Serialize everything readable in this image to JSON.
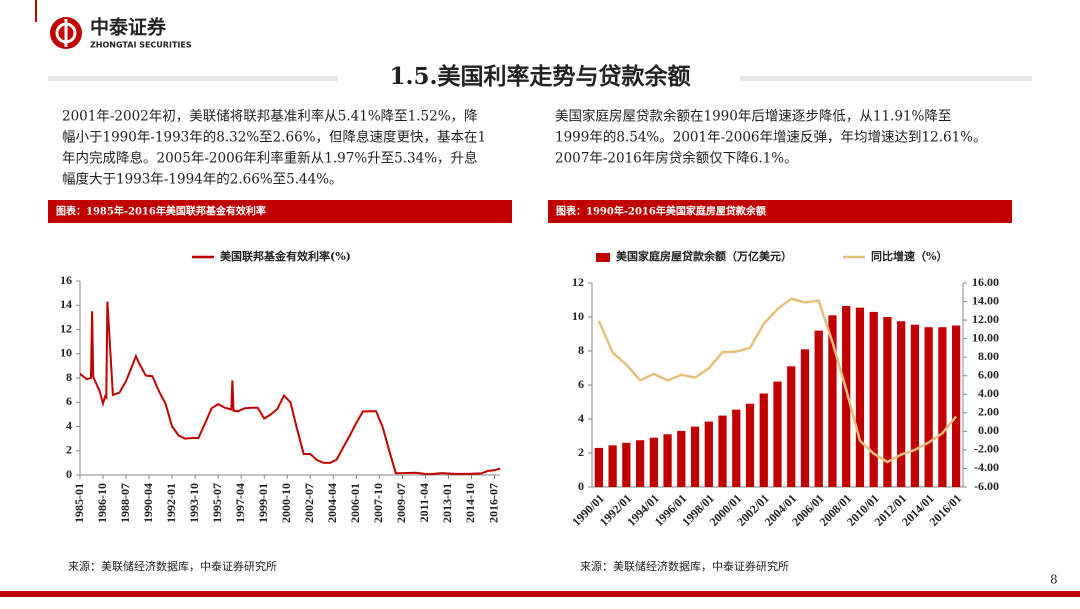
{
  "header": {
    "brand": "中泰证券",
    "brand_en": "ZHONGTAI SECURITIES"
  },
  "title": "1.5.美国利率走势与贷款余额",
  "left_text": [
    "2001年-2002年初，美联储将联邦基准利率从5.41%降至1.52%，降",
    "幅小于1990年-1993年的8.32%至2.66%，但降息速度更快，基本在1",
    "年内完成降息。2005年-2006年利率重新从1.97%升至5.34%，升息",
    "幅度大于1993年-1994年的2.66%至5.44%。"
  ],
  "right_text": [
    "美国家庭房屋贷款余额在1990年后增速逐步降低，从11.91%降至",
    "1999年的8.54%。2001年-2006年增速反弹，年均增速达到12.61%。",
    "2007年-2016年房贷余额仅下降6.1%。"
  ],
  "page_number": "8",
  "chart_data": [
    {
      "type": "line",
      "caption": "图表：1985年-2016年美国联邦基金有效利率",
      "source": "来源：美联储经济数据库，中泰证券研究所",
      "x": [
        "1985-01",
        "1985-07",
        "1985-11",
        "1985-12",
        "1986-01",
        "1986-07",
        "1986-10",
        "1986-12",
        "1987-01",
        "1987-02",
        "1987-07",
        "1988-01",
        "1988-07",
        "1989-01",
        "1989-04",
        "1989-07",
        "1990-01",
        "1990-07",
        "1991-01",
        "1991-07",
        "1992-01",
        "1992-07",
        "1993-01",
        "1993-07",
        "1994-01",
        "1994-07",
        "1995-01",
        "1995-07",
        "1996-01",
        "1996-07",
        "1996-08",
        "1996-09",
        "1997-01",
        "1997-07",
        "1998-01",
        "1998-07",
        "1999-01",
        "1999-07",
        "2000-01",
        "2000-07",
        "2001-01",
        "2001-07",
        "2002-01",
        "2002-07",
        "2003-01",
        "2003-07",
        "2004-01",
        "2004-07",
        "2005-01",
        "2005-07",
        "2006-01",
        "2006-07",
        "2007-01",
        "2007-07",
        "2008-01",
        "2008-07",
        "2009-01",
        "2009-07",
        "2010-07",
        "2011-07",
        "2012-07",
        "2013-07",
        "2014-07",
        "2015-07",
        "2016-01",
        "2016-07",
        "2016-12"
      ],
      "series": [
        {
          "name": "美国联邦基金有效利率(%)",
          "color": "#c00000",
          "values": [
            8.35,
            7.9,
            8.0,
            13.5,
            8.1,
            6.9,
            5.9,
            6.5,
            6.4,
            14.3,
            6.6,
            6.8,
            7.75,
            9.1,
            9.8,
            9.2,
            8.2,
            8.15,
            6.9,
            5.9,
            4.0,
            3.25,
            3.0,
            3.05,
            3.05,
            4.25,
            5.5,
            5.85,
            5.55,
            5.4,
            7.8,
            5.3,
            5.25,
            5.5,
            5.55,
            5.55,
            4.65,
            5.0,
            5.45,
            6.55,
            5.98,
            3.77,
            1.73,
            1.73,
            1.24,
            1.01,
            1.0,
            1.26,
            2.28,
            3.26,
            4.29,
            5.24,
            5.25,
            5.26,
            3.94,
            2.01,
            0.15,
            0.16,
            0.18,
            0.07,
            0.16,
            0.09,
            0.09,
            0.13,
            0.34,
            0.39,
            0.54
          ]
        }
      ],
      "xlim": [
        "1985-01",
        "2016-12"
      ],
      "xticks": [
        "1985-01",
        "1986-10",
        "1988-07",
        "1990-04",
        "1992-01",
        "1993-10",
        "1995-07",
        "1997-04",
        "1999-01",
        "2000-10",
        "2002-07",
        "2004-04",
        "2006-01",
        "2007-10",
        "2009-07",
        "2011-04",
        "2013-01",
        "2014-10",
        "2016-07"
      ],
      "ylim": [
        0,
        16
      ],
      "yticks": [
        0,
        2,
        4,
        6,
        8,
        10,
        12,
        14,
        16
      ]
    },
    {
      "type": "bar_line",
      "caption": "图表：1990年-2016年美国家庭房屋贷款余额",
      "source": "来源：美联储经济数据库，中泰证券研究所",
      "categories": [
        "1990/01",
        null,
        "1992/01",
        null,
        "1994/01",
        null,
        "1996/01",
        null,
        "1998/01",
        null,
        "2000/01",
        null,
        "2002/01",
        null,
        "2004/01",
        null,
        "2006/01",
        null,
        "2008/01",
        null,
        "2010/01",
        null,
        "2012/01",
        null,
        "2014/01",
        null,
        "2016/01"
      ],
      "series": [
        {
          "name": "美国家庭房屋贷款余额（万亿美元）",
          "color": "#c00000",
          "kind": "bar",
          "values": [
            2.3,
            2.45,
            2.6,
            2.75,
            2.9,
            3.1,
            3.3,
            3.55,
            3.85,
            4.2,
            4.55,
            4.9,
            5.5,
            6.2,
            7.1,
            8.1,
            9.2,
            10.1,
            10.65,
            10.55,
            10.3,
            10.0,
            9.75,
            9.55,
            9.4,
            9.4,
            9.5
          ]
        },
        {
          "name": "同比增速（%）",
          "color": "#e6c07b",
          "kind": "line",
          "axis": "y2",
          "values": [
            11.91,
            8.5,
            7.2,
            5.5,
            6.2,
            5.5,
            6.1,
            5.8,
            6.8,
            8.54,
            8.6,
            9.0,
            11.6,
            13.2,
            14.3,
            13.9,
            14.1,
            9.6,
            4.5,
            -1.0,
            -2.4,
            -3.3,
            -2.5,
            -2.0,
            -1.2,
            -0.2,
            1.6
          ]
        }
      ],
      "ylim": [
        0,
        12
      ],
      "yticks": [
        0,
        2,
        4,
        6,
        8,
        10,
        12
      ],
      "y2lim": [
        -6,
        16
      ],
      "y2ticks": [
        {
          "value": -6,
          "label": "-6.00"
        },
        {
          "value": -4,
          "label": "-4.00"
        },
        {
          "value": -2,
          "label": "-2.00"
        },
        {
          "value": 0,
          "label": "0.00"
        },
        {
          "value": 2,
          "label": "2.00"
        },
        {
          "value": 4,
          "label": "4.00"
        },
        {
          "value": 6,
          "label": "6.00"
        },
        {
          "value": 8,
          "label": "8.00"
        },
        {
          "value": 10,
          "label": "10.00"
        },
        {
          "value": 12,
          "label": "12.00"
        },
        {
          "value": 14,
          "label": "14.00"
        },
        {
          "value": 16,
          "label": "16.00"
        }
      ]
    }
  ]
}
